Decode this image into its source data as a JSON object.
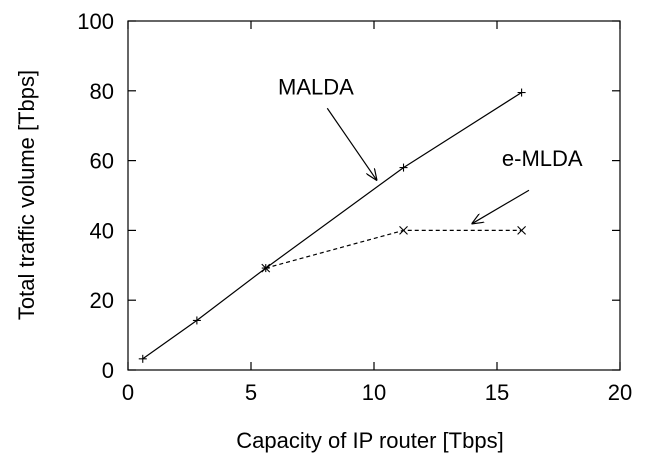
{
  "chart_data": {
    "type": "line",
    "title": "",
    "xlabel": "Capacity of IP router [Tbps]",
    "ylabel": "Total traffic volume [Tbps]",
    "xlim": [
      0,
      20
    ],
    "ylim": [
      0,
      100
    ],
    "xticks": [
      0,
      5,
      10,
      15,
      20
    ],
    "yticks": [
      0,
      20,
      40,
      60,
      80,
      100
    ],
    "xtick_labels": [
      "0",
      "5",
      "10",
      "15",
      "20"
    ],
    "ytick_labels": [
      "0",
      "20",
      "40",
      "60",
      "80",
      "100"
    ],
    "grid": false,
    "series": [
      {
        "name": "MALDA",
        "line_style": "solid",
        "marker": "plus",
        "color": "#000000",
        "x": [
          0.6,
          2.8,
          5.6,
          11.2,
          16
        ],
        "y": [
          3.2,
          14.2,
          29.2,
          58,
          79.5
        ]
      },
      {
        "name": "e-MLDA",
        "line_style": "dashed",
        "marker": "cross",
        "color": "#000000",
        "x": [
          5.6,
          11.2,
          16
        ],
        "y": [
          29.2,
          40,
          40
        ]
      }
    ],
    "annotations": [
      {
        "text": "MALDA",
        "text_at": [
          6.1,
          79
        ],
        "arrow_from": [
          8.1,
          75
        ],
        "arrow_to": [
          10.1,
          54.5
        ]
      },
      {
        "text": "e-MLDA",
        "text_at": [
          15.2,
          58.5
        ],
        "arrow_from": [
          16.3,
          51.5
        ],
        "arrow_to": [
          14,
          42
        ]
      }
    ]
  }
}
